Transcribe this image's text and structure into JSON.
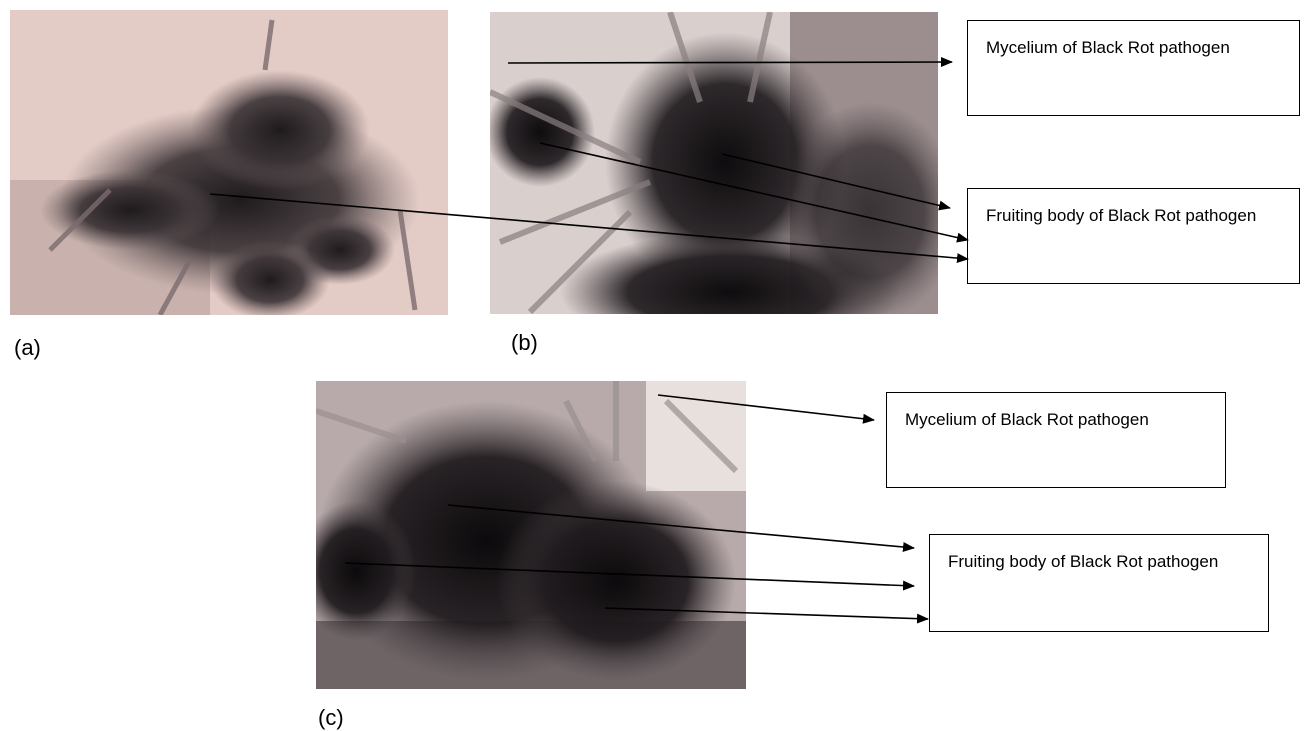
{
  "figure": {
    "panels": [
      {
        "caption": "(a)"
      },
      {
        "caption": "(b)"
      },
      {
        "caption": "(c)"
      }
    ],
    "labels": {
      "b_mycelium": "Mycelium of Black Rot pathogen",
      "b_fruiting": "Fruiting body of Black Rot pathogen",
      "c_mycelium": "Mycelium of Black Rot pathogen",
      "c_fruiting": "Fruiting body of Black Rot pathogen"
    }
  }
}
